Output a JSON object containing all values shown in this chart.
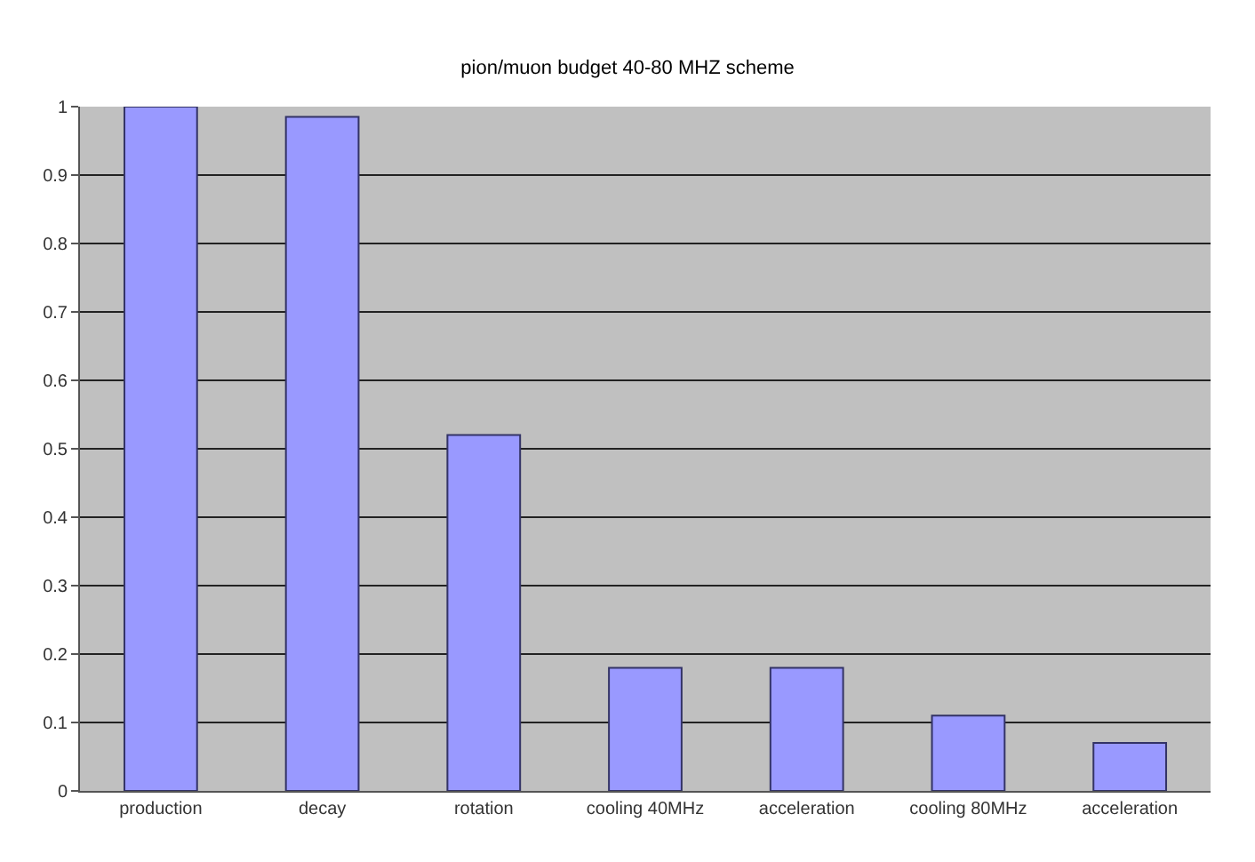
{
  "chart_data": {
    "type": "bar",
    "title": "pion/muon budget 40-80 MHZ scheme",
    "categories": [
      "production",
      "decay",
      "rotation",
      "cooling 40MHz",
      "acceleration",
      "cooling 80MHz",
      "acceleration"
    ],
    "values": [
      1.0,
      0.985,
      0.52,
      0.18,
      0.18,
      0.11,
      0.07
    ],
    "color": "#9999ff",
    "ylim": [
      0,
      1
    ],
    "yticks": [
      0,
      0.1,
      0.2,
      0.3,
      0.4,
      0.5,
      0.6,
      0.7,
      0.8,
      0.9,
      1
    ],
    "grid": "y"
  }
}
